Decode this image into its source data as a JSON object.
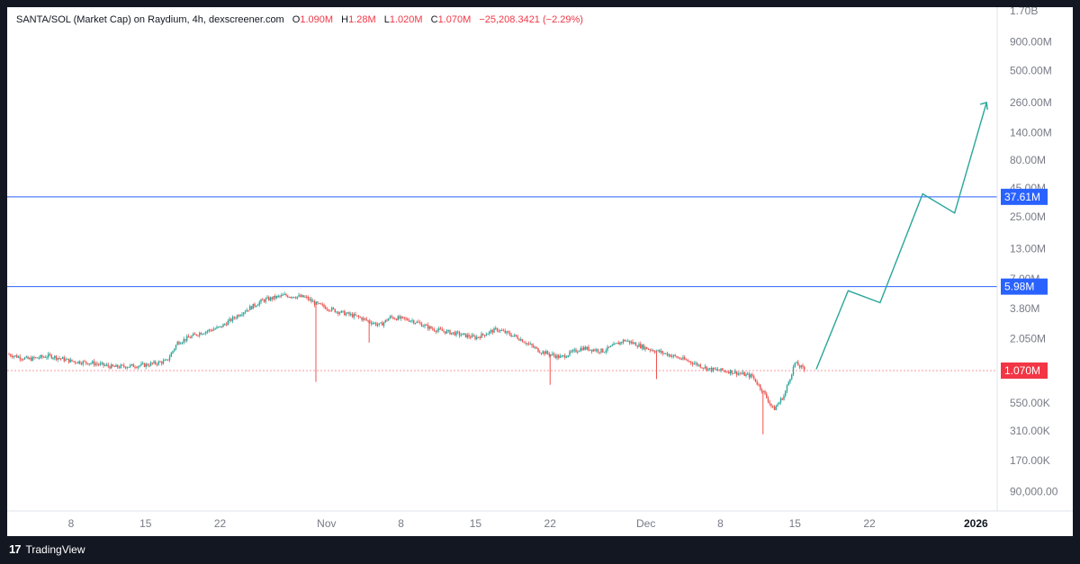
{
  "legend": {
    "symbol": "SANTA/SOL (Market Cap) on Raydium, 4h, dexscreener.com",
    "o_key": "O",
    "o_val": "1.090M",
    "h_key": "H",
    "h_val": "1.28M",
    "l_key": "L",
    "l_val": "1.020M",
    "c_key": "C",
    "c_val": "1.070M",
    "change": "−25,208.3421 (−2.29%)"
  },
  "brand": {
    "logo": "17",
    "name": "TradingView"
  },
  "colors": {
    "background": "#ffffff",
    "frame": "#131722",
    "up": "#26a69a",
    "down": "#ef5350",
    "hline": "#2962ff",
    "price_badge": "#f23645",
    "level_badge": "#2962ff",
    "projection": "#26a69a"
  },
  "chart_data": {
    "type": "candlestick",
    "y_scale": "log",
    "ylim": [
      70000,
      1700000000
    ],
    "y_ticks": [
      {
        "value": 1700000000,
        "label": "1.70B"
      },
      {
        "value": 900000000,
        "label": "900.00M"
      },
      {
        "value": 500000000,
        "label": "500.00M"
      },
      {
        "value": 260000000,
        "label": "260.00M"
      },
      {
        "value": 140000000,
        "label": "140.00M"
      },
      {
        "value": 80000000,
        "label": "80.00M"
      },
      {
        "value": 45000000,
        "label": "45.00M"
      },
      {
        "value": 25000000,
        "label": "25.00M"
      },
      {
        "value": 13000000,
        "label": "13.00M"
      },
      {
        "value": 7000000,
        "label": "7.00M"
      },
      {
        "value": 3800000,
        "label": "3.80M"
      },
      {
        "value": 2050000,
        "label": "2.050M"
      },
      {
        "value": 550000,
        "label": "550.00K"
      },
      {
        "value": 310000,
        "label": "310.00K"
      },
      {
        "value": 170000,
        "label": "170.00K"
      },
      {
        "value": 90000,
        "label": "90,000.00"
      }
    ],
    "x_ticks": [
      {
        "date": "2025-10-08",
        "label": "8",
        "bold": false
      },
      {
        "date": "2025-10-15",
        "label": "15",
        "bold": false
      },
      {
        "date": "2025-10-22",
        "label": "22",
        "bold": false
      },
      {
        "date": "2025-11-01",
        "label": "Nov",
        "bold": false
      },
      {
        "date": "2025-11-08",
        "label": "8",
        "bold": false
      },
      {
        "date": "2025-11-15",
        "label": "15",
        "bold": false
      },
      {
        "date": "2025-11-22",
        "label": "22",
        "bold": false
      },
      {
        "date": "2025-12-01",
        "label": "Dec",
        "bold": false
      },
      {
        "date": "2025-12-08",
        "label": "8",
        "bold": false
      },
      {
        "date": "2025-12-15",
        "label": "15",
        "bold": false
      },
      {
        "date": "2025-12-22",
        "label": "22",
        "bold": false
      },
      {
        "date": "2026-01-01",
        "label": "2026",
        "bold": true
      }
    ],
    "x_range": [
      "2025-10-02",
      "2026-01-03"
    ],
    "price_path": [
      [
        "2025-10-02",
        1500000
      ],
      [
        "2025-10-04",
        1350000
      ],
      [
        "2025-10-06",
        1450000
      ],
      [
        "2025-10-08",
        1300000
      ],
      [
        "2025-10-10",
        1250000
      ],
      [
        "2025-10-12",
        1150000
      ],
      [
        "2025-10-15",
        1200000
      ],
      [
        "2025-10-17",
        1300000
      ],
      [
        "2025-10-18",
        1900000
      ],
      [
        "2025-10-20",
        2300000
      ],
      [
        "2025-10-22",
        2600000
      ],
      [
        "2025-10-24",
        3500000
      ],
      [
        "2025-10-26",
        4500000
      ],
      [
        "2025-10-28",
        5000000
      ],
      [
        "2025-10-30",
        4800000
      ],
      [
        "2025-10-31",
        4200000
      ],
      [
        "2025-11-02",
        3600000
      ],
      [
        "2025-11-04",
        3200000
      ],
      [
        "2025-11-06",
        2700000
      ],
      [
        "2025-11-07",
        3200000
      ],
      [
        "2025-11-09",
        3000000
      ],
      [
        "2025-11-11",
        2500000
      ],
      [
        "2025-11-13",
        2300000
      ],
      [
        "2025-11-15",
        2100000
      ],
      [
        "2025-11-17",
        2500000
      ],
      [
        "2025-11-19",
        2100000
      ],
      [
        "2025-11-21",
        1600000
      ],
      [
        "2025-11-23",
        1400000
      ],
      [
        "2025-11-25",
        1700000
      ],
      [
        "2025-11-27",
        1600000
      ],
      [
        "2025-11-29",
        2000000
      ],
      [
        "2025-12-01",
        1700000
      ],
      [
        "2025-12-03",
        1500000
      ],
      [
        "2025-12-05",
        1300000
      ],
      [
        "2025-12-07",
        1100000
      ],
      [
        "2025-12-09",
        1050000
      ],
      [
        "2025-12-11",
        950000
      ],
      [
        "2025-12-12",
        700000
      ],
      [
        "2025-12-13",
        480000
      ],
      [
        "2025-12-14",
        650000
      ],
      [
        "2025-12-15",
        1250000
      ],
      [
        "2025-12-16",
        1070000
      ]
    ],
    "wick_spikes": [
      {
        "date": "2025-10-31",
        "low": 850000
      },
      {
        "date": "2025-11-05",
        "low": 1900000
      },
      {
        "date": "2025-11-22",
        "low": 800000
      },
      {
        "date": "2025-12-02",
        "low": 900000
      },
      {
        "date": "2025-12-12",
        "low": 290000
      }
    ],
    "last_price": {
      "value": 1070000,
      "label": "1.070M"
    },
    "levels": [
      {
        "value": 37610000,
        "label": "37.61M"
      },
      {
        "value": 5980000,
        "label": "5.98M"
      }
    ],
    "projection": [
      [
        "2025-12-17",
        1100000
      ],
      [
        "2025-12-20",
        5500000
      ],
      [
        "2025-12-23",
        4300000
      ],
      [
        "2025-12-27",
        40000000
      ],
      [
        "2025-12-30",
        27000000
      ],
      [
        "2026-01-02",
        260000000
      ]
    ]
  }
}
